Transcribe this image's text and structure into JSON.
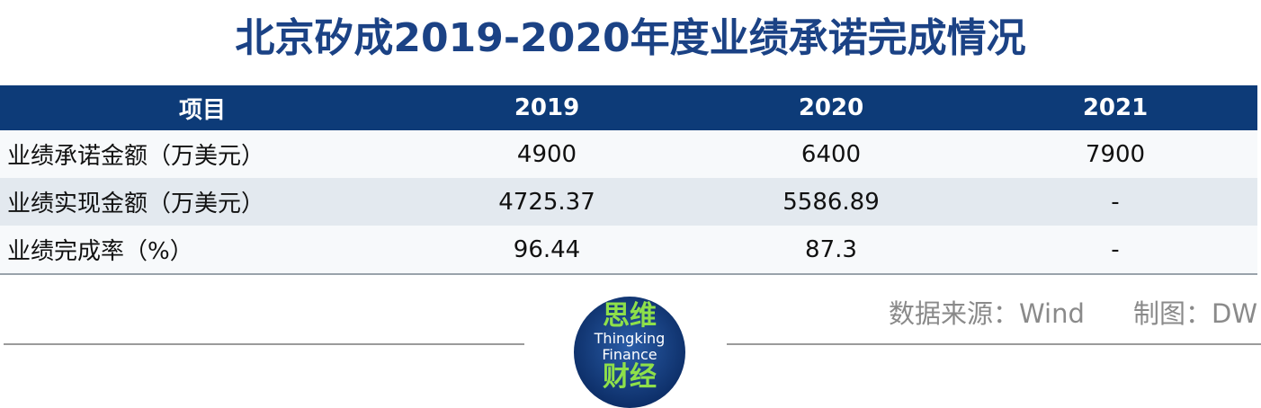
{
  "header": {
    "title": "北京矽成2019-2020年度业绩承诺完成情况"
  },
  "table": {
    "columns": [
      "项目",
      "2019",
      "2020",
      "2021"
    ],
    "rows": [
      [
        "业绩承诺金额（万美元）",
        "4900",
        "6400",
        "7900"
      ],
      [
        "业绩实现金额（万美元）",
        "4725.37",
        "5586.89",
        "-"
      ],
      [
        "业绩完成率（%）",
        "96.44",
        "87.3",
        "-"
      ]
    ]
  },
  "footer": {
    "source": "数据来源：Wind",
    "credit": "制图：DW"
  },
  "logo": {
    "top": "思维",
    "line1": "Thingking",
    "line2": "Finance",
    "bottom": "财经"
  }
}
